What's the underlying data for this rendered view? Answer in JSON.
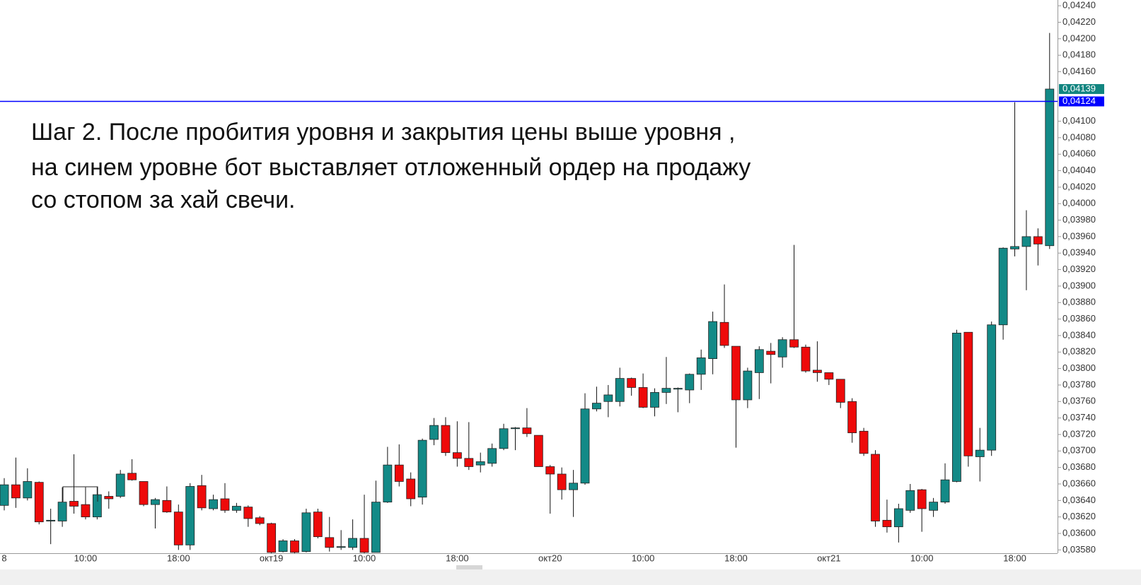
{
  "chart_data": {
    "type": "candlestick",
    "annotation": [
      "Шаг 2.  После пробития уровня и закрытия цены выше уровня ,",
      "на синем уровне бот выставляет отложенный ордер на продажу",
      "со стопом за хай свечи."
    ],
    "categories": [
      "8",
      null,
      null,
      null,
      null,
      null,
      null,
      "10:00",
      null,
      null,
      null,
      null,
      null,
      null,
      null,
      "18:00",
      null,
      null,
      null,
      null,
      null,
      null,
      null,
      "окт19",
      null,
      null,
      null,
      null,
      null,
      null,
      null,
      "10:00",
      null,
      null,
      null,
      null,
      null,
      null,
      null,
      "18:00",
      null,
      null,
      null,
      null,
      null,
      null,
      null,
      "окт20",
      null,
      null,
      null,
      null,
      null,
      null,
      null,
      "10:00",
      null,
      null,
      null,
      null,
      null,
      null,
      null,
      "18:00",
      null,
      null,
      null,
      null,
      null,
      null,
      null,
      "окт21",
      null,
      null,
      null,
      null,
      null,
      null,
      null,
      "10:00",
      null,
      null,
      null,
      null,
      null,
      null,
      null,
      "18:00",
      null,
      null,
      null
    ],
    "open": [
      0.03634,
      0.03659,
      0.03643,
      0.03662,
      0.03615,
      0.03615,
      0.03639,
      0.03635,
      0.0362,
      0.03645,
      0.03645,
      0.03673,
      0.03663,
      0.03635,
      0.0364,
      0.03626,
      0.03586,
      0.03658,
      0.0363,
      0.03642,
      0.03628,
      0.03632,
      0.03619,
      0.03612,
      0.03578,
      0.03591,
      0.03578,
      0.03626,
      0.03595,
      0.03583,
      0.03583,
      0.03594,
      0.03577,
      0.03638,
      0.03683,
      0.03666,
      0.03644,
      0.03714,
      0.03731,
      0.03698,
      0.03691,
      0.03683,
      0.03685,
      0.03703,
      0.03727,
      0.03728,
      0.03719,
      0.03681,
      0.03672,
      0.03653,
      0.03661,
      0.03751,
      0.0376,
      0.0376,
      0.03788,
      0.03777,
      0.03753,
      0.03771,
      0.03775,
      0.03774,
      0.03793,
      0.03812,
      0.03856,
      0.03827,
      0.03762,
      0.03795,
      0.03821,
      0.03814,
      0.03835,
      0.03826,
      0.03798,
      0.03795,
      0.03787,
      0.0376,
      0.03724,
      0.03696,
      0.03616,
      0.03608,
      0.03628,
      0.03653,
      0.03628,
      0.03638,
      0.03663,
      0.03844,
      0.03693,
      0.03701,
      0.03853,
      0.03945,
      0.03948,
      0.0396,
      0.03949
    ],
    "high": [
      0.03667,
      0.03692,
      0.03679,
      0.03663,
      0.0363,
      0.03656,
      0.03696,
      0.03656,
      0.03656,
      0.03651,
      0.03677,
      0.0369,
      0.03663,
      0.03643,
      0.03657,
      0.03635,
      0.03661,
      0.03671,
      0.03647,
      0.03661,
      0.03637,
      0.03634,
      0.03621,
      0.03613,
      0.03593,
      0.03593,
      0.0363,
      0.0363,
      0.0362,
      0.03604,
      0.03617,
      0.03647,
      0.03664,
      0.03705,
      0.03708,
      0.03674,
      0.03715,
      0.0374,
      0.03741,
      0.03736,
      0.03735,
      0.03698,
      0.03709,
      0.03733,
      0.03729,
      0.03752,
      0.03719,
      0.03683,
      0.0368,
      0.03677,
      0.0377,
      0.03778,
      0.0378,
      0.03801,
      0.03789,
      0.03794,
      0.03776,
      0.03814,
      0.03777,
      0.03794,
      0.03823,
      0.03869,
      0.03902,
      0.03827,
      0.03801,
      0.03827,
      0.03831,
      0.03838,
      0.0395,
      0.03829,
      0.03833,
      0.03795,
      0.03787,
      0.03764,
      0.03728,
      0.03701,
      0.03641,
      0.03636,
      0.0366,
      0.03654,
      0.03643,
      0.03685,
      0.03847,
      0.03844,
      0.03728,
      0.03857,
      0.03947,
      0.04123,
      0.03992,
      0.0397,
      0.04207
    ],
    "low": [
      0.03628,
      0.03631,
      0.0364,
      0.03611,
      0.03587,
      0.03608,
      0.03624,
      0.03617,
      0.03617,
      0.0363,
      0.03643,
      0.03664,
      0.03633,
      0.03606,
      0.03625,
      0.0358,
      0.0358,
      0.03628,
      0.03628,
      0.03625,
      0.03625,
      0.03608,
      0.0361,
      0.0357,
      0.03577,
      0.03574,
      0.03577,
      0.03594,
      0.03578,
      0.0358,
      0.0358,
      0.03574,
      0.03577,
      0.03637,
      0.03657,
      0.03633,
      0.03635,
      0.03707,
      0.03694,
      0.03681,
      0.03677,
      0.03674,
      0.03681,
      0.03701,
      0.03701,
      0.03717,
      0.03681,
      0.03624,
      0.03641,
      0.0362,
      0.03659,
      0.03748,
      0.03741,
      0.03754,
      0.03767,
      0.03752,
      0.03742,
      0.03757,
      0.03747,
      0.03758,
      0.03774,
      0.03793,
      0.03825,
      0.03704,
      0.03752,
      0.03763,
      0.03782,
      0.03801,
      0.03825,
      0.03795,
      0.03784,
      0.0378,
      0.03752,
      0.0371,
      0.03694,
      0.03608,
      0.03601,
      0.03589,
      0.03625,
      0.03602,
      0.0362,
      0.03636,
      0.03662,
      0.03681,
      0.03663,
      0.03694,
      0.03835,
      0.03936,
      0.03895,
      0.03925,
      0.03945
    ],
    "close": [
      0.03659,
      0.03643,
      0.03663,
      0.03614,
      0.03616,
      0.03638,
      0.03633,
      0.0362,
      0.03647,
      0.03642,
      0.03672,
      0.03665,
      0.03635,
      0.03641,
      0.03626,
      0.03586,
      0.03657,
      0.03631,
      0.03641,
      0.03628,
      0.03633,
      0.03618,
      0.03612,
      0.03577,
      0.03591,
      0.03577,
      0.03625,
      0.03596,
      0.03583,
      0.03584,
      0.03594,
      0.03577,
      0.03638,
      0.03683,
      0.03663,
      0.03642,
      0.03713,
      0.03731,
      0.03698,
      0.03691,
      0.03681,
      0.03687,
      0.03703,
      0.03727,
      0.03728,
      0.03721,
      0.03681,
      0.03672,
      0.03653,
      0.03661,
      0.03751,
      0.03758,
      0.03768,
      0.03788,
      0.03777,
      0.03753,
      0.03771,
      0.03776,
      0.03776,
      0.03793,
      0.03813,
      0.03857,
      0.03828,
      0.03762,
      0.03797,
      0.03823,
      0.03817,
      0.03835,
      0.03826,
      0.03797,
      0.03795,
      0.03787,
      0.03759,
      0.03722,
      0.03697,
      0.03615,
      0.03608,
      0.0363,
      0.03652,
      0.0363,
      0.03638,
      0.03665,
      0.03843,
      0.03694,
      0.03701,
      0.03853,
      0.03946,
      0.03948,
      0.0396,
      0.03951,
      0.04139
    ],
    "up_color": "#138a87",
    "down_color": "#ee0a0a",
    "ylim": [
      0.03576,
      0.04247
    ],
    "yticks": [
      {
        "value": 0.0358,
        "label": "0,03580"
      },
      {
        "value": 0.036,
        "label": "0,03600"
      },
      {
        "value": 0.0362,
        "label": "0,03620"
      },
      {
        "value": 0.0364,
        "label": "0,03640"
      },
      {
        "value": 0.0366,
        "label": "0,03660"
      },
      {
        "value": 0.0368,
        "label": "0,03680"
      },
      {
        "value": 0.037,
        "label": "0,03700"
      },
      {
        "value": 0.0372,
        "label": "0,03720"
      },
      {
        "value": 0.0374,
        "label": "0,03740"
      },
      {
        "value": 0.0376,
        "label": "0,03760"
      },
      {
        "value": 0.0378,
        "label": "0,03780"
      },
      {
        "value": 0.038,
        "label": "0,03800"
      },
      {
        "value": 0.0382,
        "label": "0,03820"
      },
      {
        "value": 0.0384,
        "label": "0,03840"
      },
      {
        "value": 0.0386,
        "label": "0,03860"
      },
      {
        "value": 0.0388,
        "label": "0,03880"
      },
      {
        "value": 0.039,
        "label": "0,03900"
      },
      {
        "value": 0.0392,
        "label": "0,03920"
      },
      {
        "value": 0.0394,
        "label": "0,03940"
      },
      {
        "value": 0.0396,
        "label": "0,03960"
      },
      {
        "value": 0.0398,
        "label": "0,03980"
      },
      {
        "value": 0.04,
        "label": "0,04000"
      },
      {
        "value": 0.0402,
        "label": "0,04020"
      },
      {
        "value": 0.0404,
        "label": "0,04040"
      },
      {
        "value": 0.0406,
        "label": "0,04060"
      },
      {
        "value": 0.0408,
        "label": "0,04080"
      },
      {
        "value": 0.041,
        "label": "0,04100"
      },
      {
        "value": 0.0416,
        "label": "0,04160"
      },
      {
        "value": 0.0418,
        "label": "0,04180"
      },
      {
        "value": 0.042,
        "label": "0,04200"
      },
      {
        "value": 0.0422,
        "label": "0,04220"
      },
      {
        "value": 0.0424,
        "label": "0,04240"
      }
    ],
    "level_line": {
      "value": 0.04124,
      "label": "0,04124",
      "color": "#0000ff"
    },
    "last_price": {
      "value": 0.04139,
      "label": "0,04139",
      "color": "#128580"
    }
  }
}
